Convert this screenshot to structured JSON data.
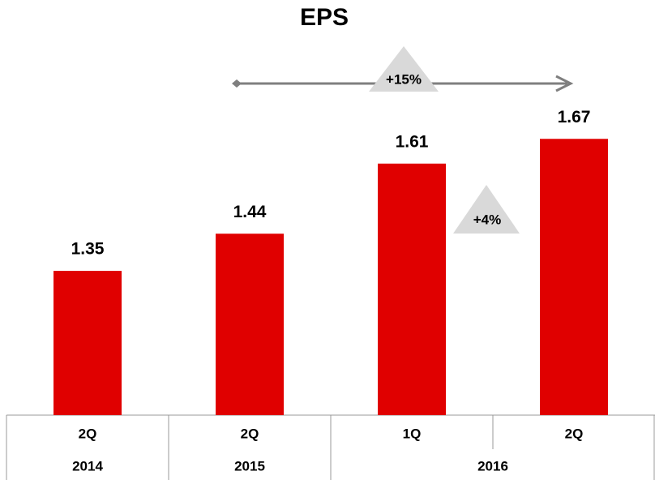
{
  "chart_data": {
    "type": "bar",
    "title": "EPS",
    "categories": [
      "2Q",
      "2Q",
      "1Q",
      "2Q"
    ],
    "groups": [
      {
        "label": "2014",
        "size": 1
      },
      {
        "label": "2015",
        "size": 1
      },
      {
        "label": "2016",
        "size": 2
      }
    ],
    "values": [
      1.35,
      1.44,
      1.61,
      1.67
    ],
    "color": "#e00000",
    "ylim": [
      1,
      1.7
    ],
    "annotations": [
      "+15%",
      "+4%"
    ]
  }
}
